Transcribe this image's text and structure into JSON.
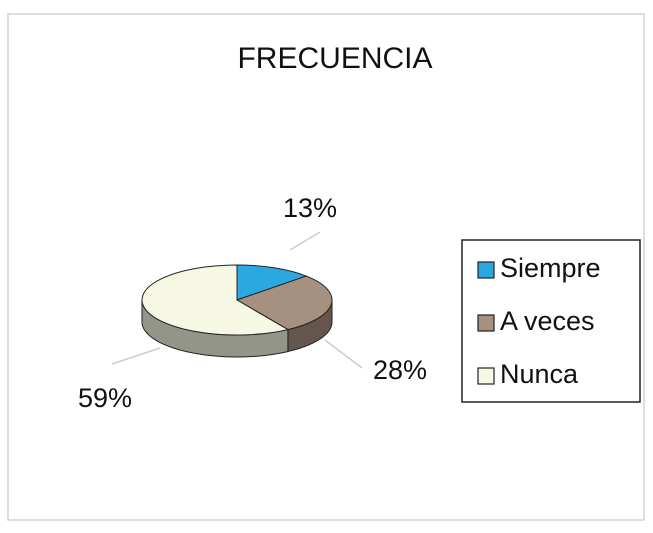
{
  "chart_data": {
    "type": "pie",
    "title": "FRECUENCIA",
    "categories": [
      "Siempre",
      "A veces",
      "Nunca"
    ],
    "values": [
      13,
      28,
      59
    ],
    "value_labels": [
      "13%",
      "28%",
      "59%"
    ],
    "colors": [
      "#2aa8df",
      "#a6907f",
      "#f7f8e4"
    ],
    "legend": "right"
  }
}
